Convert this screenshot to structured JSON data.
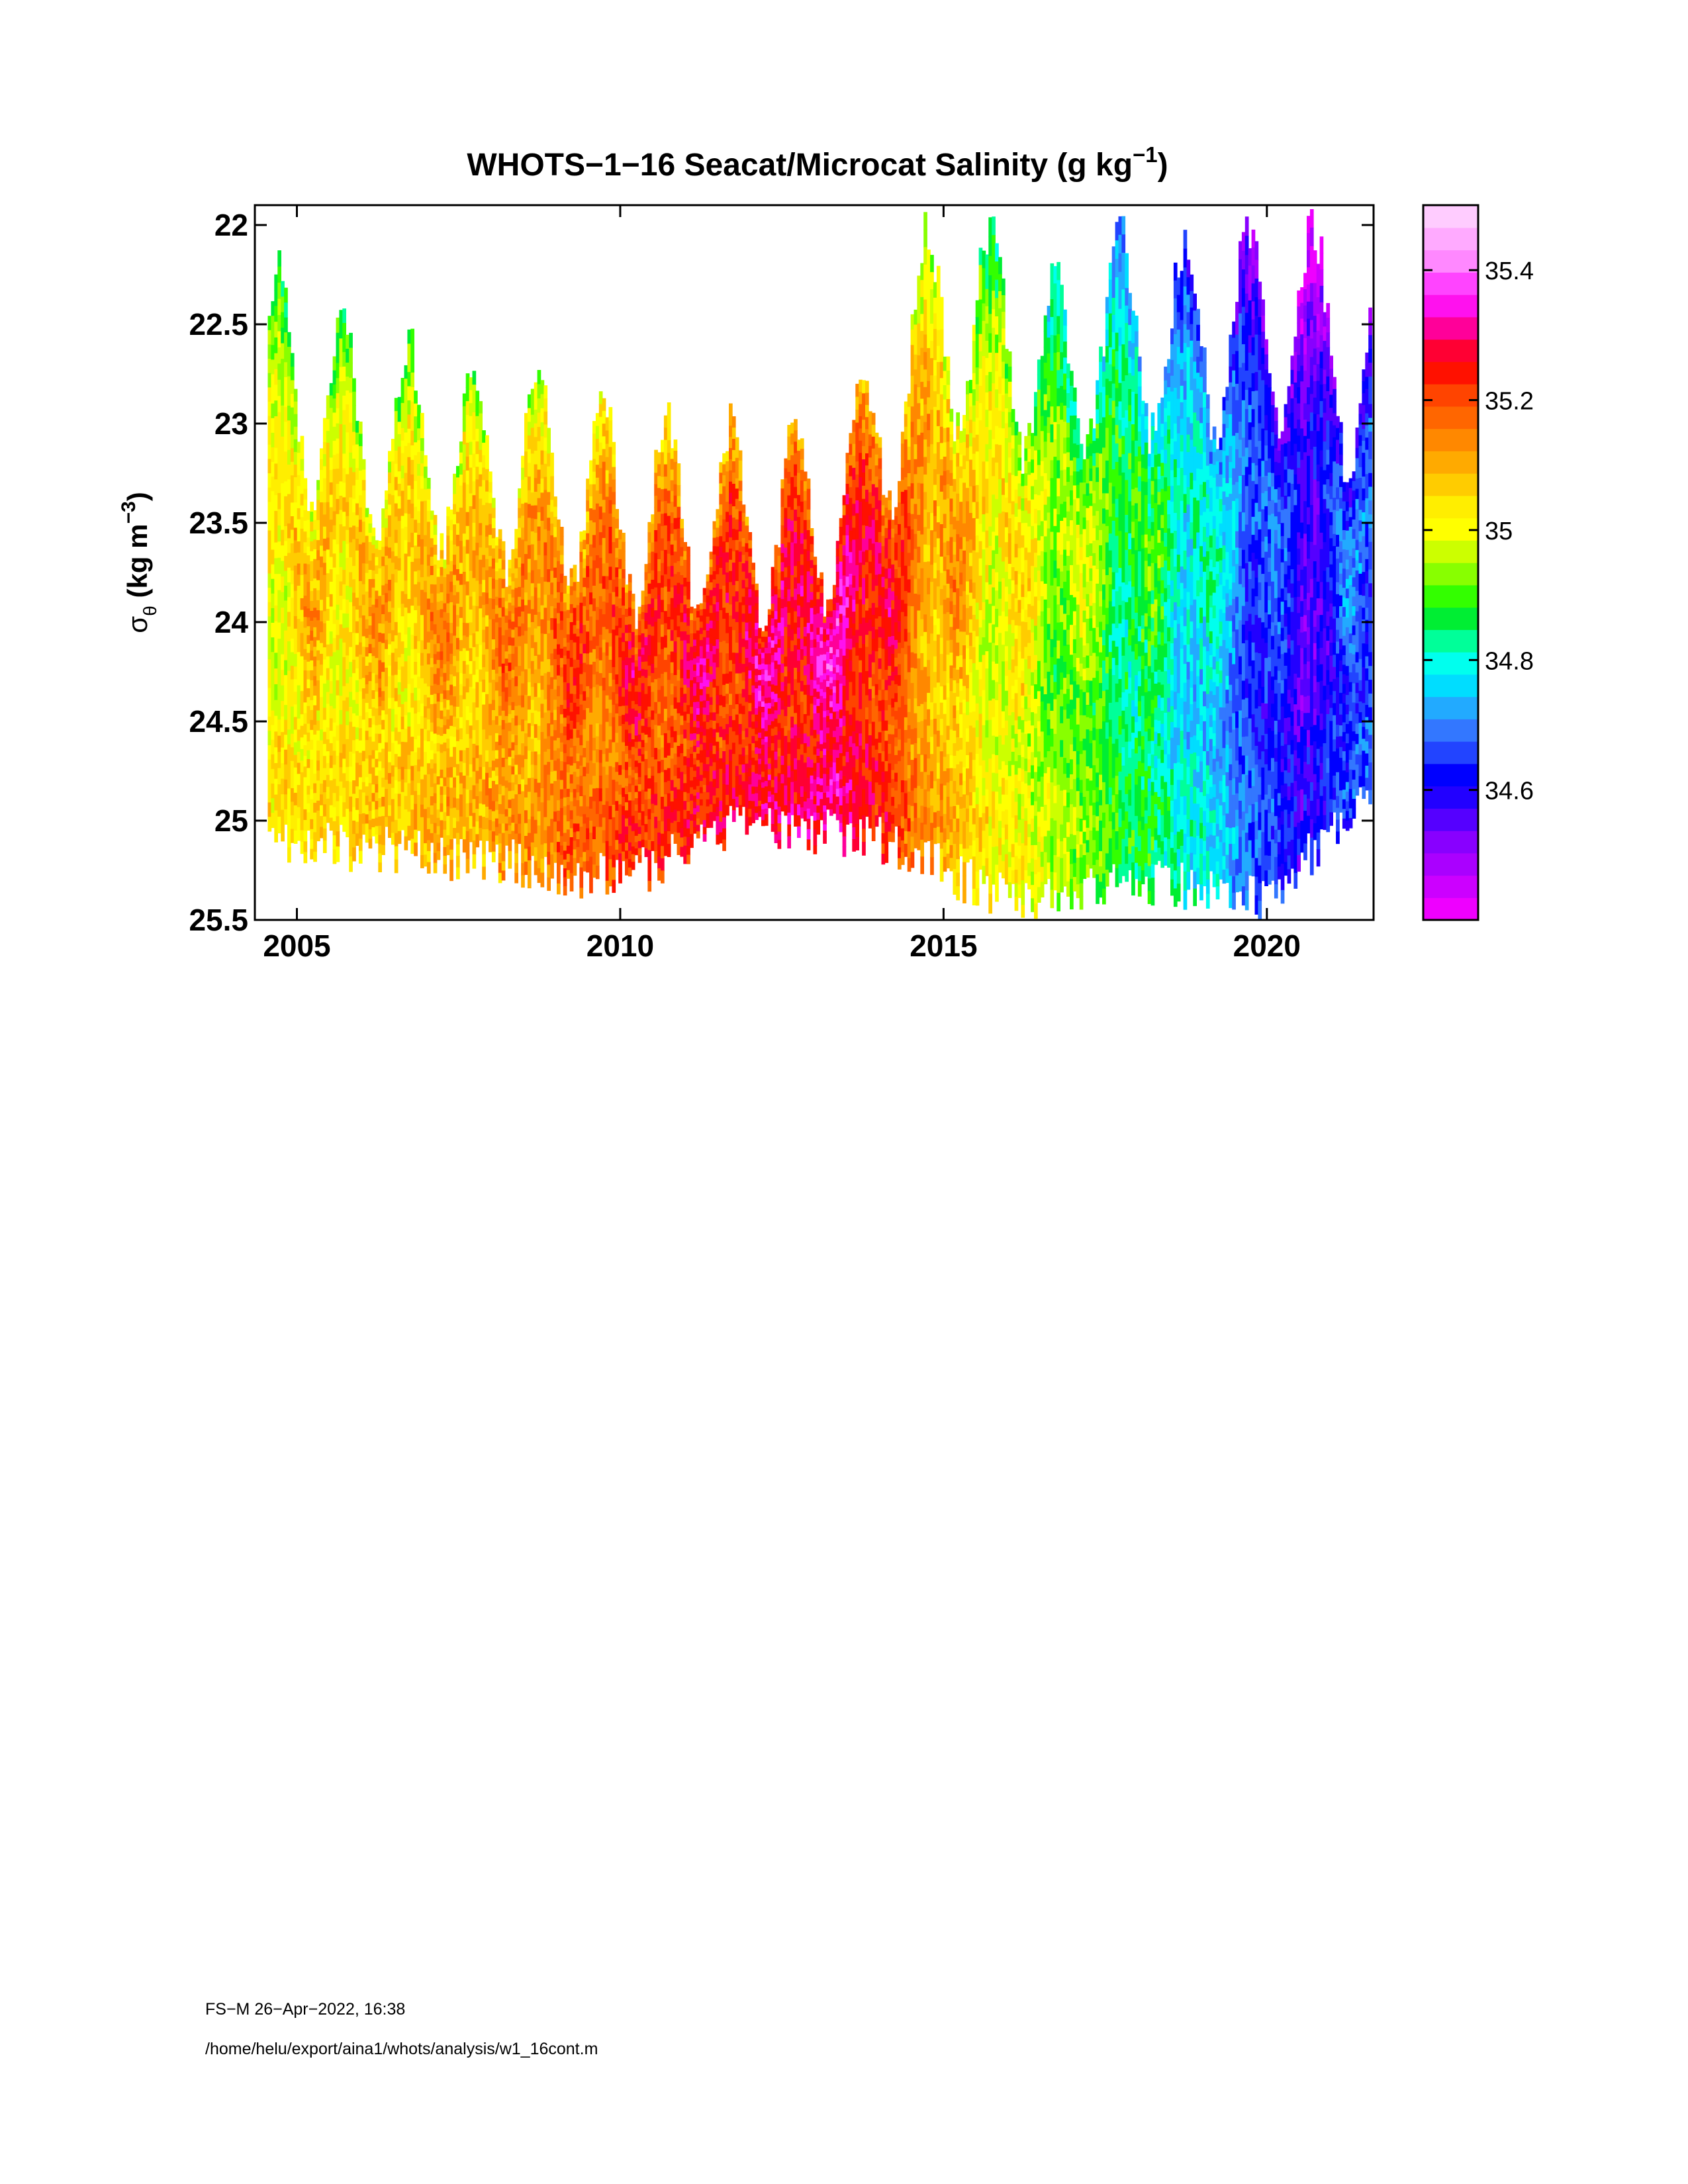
{
  "chart_data": {
    "type": "heatmap",
    "title": {
      "text": "WHOTS−1−16 Seacat/Microcat  Salinity (g kg",
      "sup": "−1",
      "tail": ")"
    },
    "ylabel": {
      "sym": "σ",
      "sub": "θ",
      "text": " (kg m",
      "sup": "−3",
      "tail": ")"
    },
    "xlim": [
      2004.35,
      2021.65
    ],
    "ylim": [
      25.5,
      21.9
    ],
    "y_inverted": true,
    "xticks": [
      2005,
      2010,
      2015,
      2020
    ],
    "xtick_labels": [
      "2005",
      "2010",
      "2015",
      "2020"
    ],
    "yticks": [
      22,
      22.5,
      23,
      23.5,
      24,
      24.5,
      25,
      25.5
    ],
    "ytick_labels": [
      "22",
      "22.5",
      "23",
      "23.5",
      "24",
      "24.5",
      "25",
      "25.5"
    ],
    "colorbar": {
      "range": [
        34.4,
        35.5
      ],
      "ticks": [
        34.6,
        34.8,
        35,
        35.2,
        35.4
      ],
      "tick_labels": [
        "34.6",
        "34.8",
        "35",
        "35.2",
        "35.4"
      ],
      "bands": [
        "#ee00ff",
        "#cc00ff",
        "#aa00ff",
        "#8800ff",
        "#5500ff",
        "#2200ff",
        "#0000ff",
        "#2244ff",
        "#3377ff",
        "#22aaff",
        "#00ddff",
        "#00ffee",
        "#00ff99",
        "#00ee33",
        "#33ff00",
        "#88ff00",
        "#ccff00",
        "#ffff00",
        "#ffee00",
        "#ffcc00",
        "#ffaa00",
        "#ff8800",
        "#ff6600",
        "#ff4400",
        "#ff1100",
        "#ff0033",
        "#ff0099",
        "#ff11ee",
        "#ff44ff",
        "#ff88ff",
        "#ffaaff",
        "#ffccff"
      ]
    },
    "seasonal_profile": {
      "period_years": 1.0,
      "top_sigma_at_peak": [
        [
          2004.5,
          22.2
        ],
        [
          2005.7,
          22.5
        ],
        [
          2006.7,
          22.6
        ],
        [
          2007.7,
          22.7
        ],
        [
          2008.7,
          22.7
        ],
        [
          2009.8,
          22.9
        ],
        [
          2010.7,
          23.0
        ],
        [
          2011.7,
          23.0
        ],
        [
          2012.8,
          23.0
        ],
        [
          2013.7,
          22.8
        ],
        [
          2014.7,
          22.0
        ],
        [
          2015.7,
          22.0
        ],
        [
          2016.7,
          22.3
        ],
        [
          2017.6,
          22.0
        ],
        [
          2018.6,
          22.1
        ],
        [
          2019.6,
          22.0
        ],
        [
          2020.7,
          22.0
        ],
        [
          2021.4,
          22.3
        ]
      ],
      "bottom_sigma": [
        [
          2004.5,
          25.1
        ],
        [
          2008,
          25.2
        ],
        [
          2010,
          25.3
        ],
        [
          2012,
          25.0
        ],
        [
          2014,
          25.1
        ],
        [
          2016,
          25.4
        ],
        [
          2018,
          25.3
        ],
        [
          2020,
          25.4
        ],
        [
          2021.6,
          24.8
        ]
      ]
    },
    "salinity_trend": [
      [
        2004.5,
        35.15
      ],
      [
        2008,
        35.22
      ],
      [
        2010,
        35.32
      ],
      [
        2013.5,
        35.42
      ],
      [
        2015,
        35.2
      ],
      [
        2017,
        35.05
      ],
      [
        2019,
        34.9
      ],
      [
        2020.5,
        34.7
      ],
      [
        2021.6,
        34.8
      ]
    ]
  },
  "footer": {
    "line1": "FS−M  26−Apr−2022, 16:38",
    "line2": "/home/helu/export/aina1/whots/analysis/w1_16cont.m"
  }
}
